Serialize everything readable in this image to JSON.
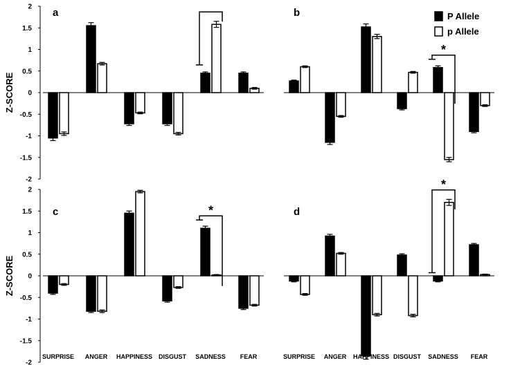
{
  "chart_data": [
    {
      "type": "bar",
      "panel": "a",
      "categories": [
        "SURPRISE",
        "ANGER",
        "HAPPINESS",
        "DISGUST",
        "SADNESS",
        "FEAR"
      ],
      "series": [
        {
          "name": "P Allele",
          "values": [
            -1.05,
            1.55,
            -0.72,
            -0.72,
            0.45,
            0.45
          ],
          "errors": [
            0.06,
            0.07,
            0.04,
            0.04,
            0.03,
            0.03
          ]
        },
        {
          "name": "p Allele",
          "values": [
            -0.95,
            0.67,
            -0.47,
            -0.95,
            1.58,
            0.1
          ],
          "errors": [
            0.04,
            0.03,
            0.02,
            0.03,
            0.07,
            0.02
          ]
        }
      ],
      "ylabel": "Z-SCORE",
      "ylim": [
        -2,
        2
      ],
      "yticks": [
        2,
        1.5,
        1,
        0.5,
        0,
        -0.5,
        -1,
        -1.5,
        -2
      ],
      "significance": {
        "category": "SADNESS",
        "label": ""
      }
    },
    {
      "type": "bar",
      "panel": "b",
      "categories": [
        "SURPRISE",
        "ANGER",
        "HAPPINESS",
        "DISGUST",
        "SADNESS",
        "FEAR"
      ],
      "series": [
        {
          "name": "P Allele",
          "values": [
            0.27,
            -1.15,
            1.52,
            -0.37,
            0.58,
            -0.9
          ],
          "errors": [
            0.02,
            0.05,
            0.07,
            0.03,
            0.04,
            0.03
          ]
        },
        {
          "name": "p Allele",
          "values": [
            0.6,
            -0.55,
            1.3,
            0.47,
            -1.55,
            -0.3
          ],
          "errors": [
            0.02,
            0.02,
            0.05,
            0.02,
            0.05,
            0.02
          ]
        }
      ],
      "ylim": [
        -2,
        2
      ],
      "significance": {
        "category": "SADNESS",
        "label": "*"
      }
    },
    {
      "type": "bar",
      "panel": "c",
      "categories": [
        "SURPRISE",
        "ANGER",
        "HAPPINESS",
        "DISGUST",
        "SADNESS",
        "FEAR"
      ],
      "series": [
        {
          "name": "P Allele",
          "values": [
            -0.4,
            -0.82,
            1.45,
            -0.58,
            1.1,
            -0.75
          ],
          "errors": [
            0.03,
            0.03,
            0.05,
            0.03,
            0.05,
            0.03
          ]
        },
        {
          "name": "p Allele",
          "values": [
            -0.2,
            -0.82,
            1.95,
            -0.27,
            0.02,
            -0.68
          ],
          "errors": [
            0.02,
            0.03,
            0.03,
            0.02,
            0.01,
            0.02
          ]
        }
      ],
      "ylabel": "Z-SCORE",
      "ylim": [
        -2,
        2
      ],
      "yticks": [
        2,
        1.5,
        1,
        0.5,
        0,
        -0.5,
        -1,
        -1.5,
        -2
      ],
      "significance": {
        "category": "SADNESS",
        "label": "*"
      }
    },
    {
      "type": "bar",
      "panel": "d",
      "categories": [
        "SURPRISE",
        "ANGER",
        "HAPPINESS",
        "DISGUST",
        "SADNESS",
        "FEAR"
      ],
      "series": [
        {
          "name": "P Allele",
          "values": [
            -0.12,
            0.92,
            -1.85,
            0.48,
            -0.12,
            0.72
          ],
          "errors": [
            0.02,
            0.04,
            0.08,
            0.03,
            0.02,
            0.03
          ]
        },
        {
          "name": "p Allele",
          "values": [
            -0.43,
            0.52,
            -0.9,
            -0.92,
            1.7,
            0.03
          ],
          "errors": [
            0.02,
            0.02,
            0.03,
            0.03,
            0.07,
            0.01
          ]
        }
      ],
      "ylim": [
        -2,
        2
      ],
      "significance": {
        "category": "SADNESS",
        "label": "*"
      }
    }
  ],
  "legend": {
    "items": [
      {
        "label": "P Allele",
        "fill": "#000000"
      },
      {
        "label": "p Allele",
        "fill": "#ffffff"
      }
    ],
    "placement": "top-right of panel b"
  },
  "colors": {
    "p_upper": "#000000",
    "p_lower": "#ffffff",
    "axis": "#000000"
  }
}
